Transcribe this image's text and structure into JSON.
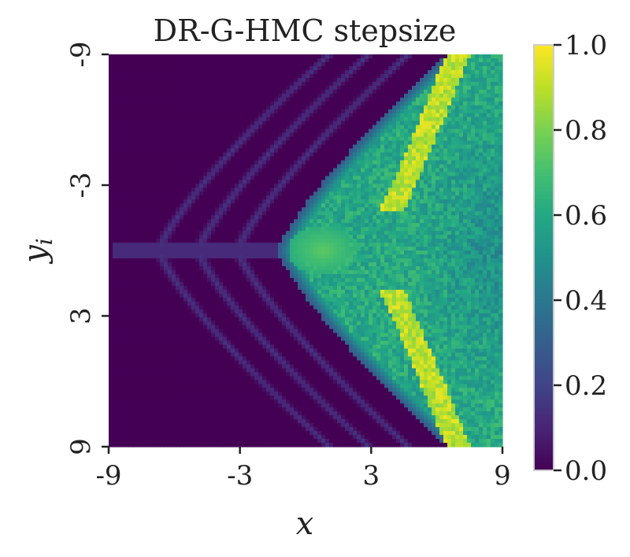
{
  "chart_data": {
    "type": "heatmap",
    "title": "DR-G-HMC stepsize",
    "xlabel": "x",
    "ylabel": "y_i",
    "ylabel_main": "y",
    "ylabel_sub": "i",
    "x_range": [
      -9,
      9
    ],
    "y_range": [
      -9,
      9
    ],
    "y_axis_inverted": true,
    "x_ticks": [
      "-9",
      "-3",
      "3",
      "9"
    ],
    "x_tick_values": [
      -9,
      -3,
      3,
      9
    ],
    "y_ticks": [
      "-9",
      "-3",
      "3",
      "9"
    ],
    "y_tick_values": [
      -9,
      -3,
      3,
      9
    ],
    "grid": false,
    "colormap": "viridis",
    "colorbar": {
      "range": [
        0.0,
        1.0
      ],
      "ticks": [
        "0.0",
        "0.2",
        "0.4",
        "0.6",
        "0.8",
        "1.0"
      ],
      "tick_values": [
        0.0,
        0.2,
        0.4,
        0.6,
        0.8,
        1.0
      ],
      "placement": "right"
    },
    "colors": {
      "low": "#440154",
      "mid": "#21918c",
      "high": "#fde725"
    },
    "resolution": [
      100,
      100
    ],
    "description_of_field": {
      "left_region_value": 0.0,
      "faint_fan_value": 0.15,
      "right_region_value_range": [
        0.45,
        0.7
      ],
      "ridge_value": 0.9,
      "center_spot_value": 0.75
    }
  }
}
